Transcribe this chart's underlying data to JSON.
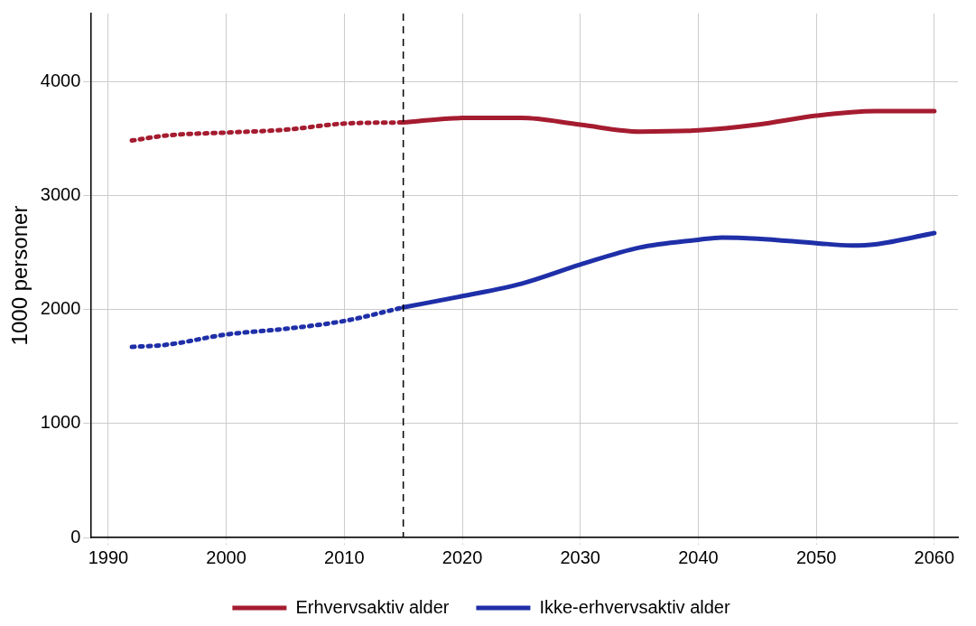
{
  "chart_data": {
    "type": "line",
    "ylabel": "1000 personer",
    "xlim": [
      1988.5,
      2062
    ],
    "ylim": [
      0,
      4600
    ],
    "xticks": [
      1990,
      2000,
      2010,
      2020,
      2030,
      2040,
      2050,
      2060
    ],
    "yticks": [
      0,
      1000,
      2000,
      3000,
      4000
    ],
    "grid": true,
    "legend": "bottom",
    "marker": "none",
    "series": [
      {
        "name": "Erhvervsaktiv alder",
        "color": "#a51c30",
        "line_style": "solid",
        "x": [
          2015,
          2020,
          2025,
          2030,
          2035,
          2040,
          2045,
          2050,
          2055,
          2060
        ],
        "values": [
          3644,
          3683,
          3683,
          3624,
          3564,
          3574,
          3624,
          3703,
          3743,
          3743
        ]
      },
      {
        "name": "Ikke-erhvervsaktiv alder",
        "color": "#1f2fa8",
        "line_style": "solid",
        "x": [
          2015,
          2020,
          2025,
          2030,
          2035,
          2040,
          2042,
          2045,
          2050,
          2053,
          2055,
          2060
        ],
        "values": [
          2020,
          2119,
          2228,
          2396,
          2545,
          2614,
          2634,
          2624,
          2584,
          2564,
          2574,
          2673
        ]
      },
      {
        "color": "#a51c30",
        "line_style": "dotted",
        "x": [
          1992,
          1995,
          2000,
          2005,
          2010,
          2015
        ],
        "values": [
          3485,
          3530,
          3555,
          3580,
          3634,
          3644
        ]
      },
      {
        "color": "#1f2fa8",
        "line_style": "dotted",
        "x": [
          1992,
          1995,
          2000,
          2005,
          2010,
          2015
        ],
        "values": [
          1673,
          1693,
          1782,
          1832,
          1901,
          2020
        ]
      }
    ],
    "ref_lines": [
      {
        "axis": "x",
        "value": 2015,
        "color": "#000000",
        "line_style": "dashed"
      }
    ]
  }
}
